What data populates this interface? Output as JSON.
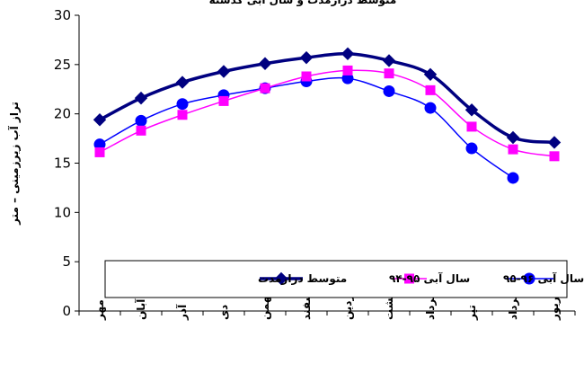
{
  "chart_data": {
    "type": "line",
    "title": "متوسط درازمدت و سال آبی گذشته",
    "ylabel": "تراز آب زیرزمینی – متر",
    "xlabel": "",
    "ylim": [
      0,
      30
    ],
    "yticks": [
      0,
      5,
      10,
      15,
      20,
      25,
      30
    ],
    "grid": false,
    "legend_position": "bottom",
    "categories": [
      "مهر",
      "آبان",
      "آذر",
      "دی",
      "بهمن",
      "اسفند",
      "فروردین",
      "اردیبهشت",
      "خرداد",
      "تیر",
      "مرداد",
      "شهریور"
    ],
    "series": [
      {
        "name": "متوسط درازمدت",
        "color": "#000080",
        "marker": "diamond",
        "values": [
          19.4,
          21.6,
          23.2,
          24.3,
          25.1,
          25.7,
          26.1,
          25.4,
          24.0,
          20.4,
          17.6,
          17.1
        ]
      },
      {
        "name": "سال آبی ۹۵-۹۴",
        "color": "#FF00FF",
        "marker": "square",
        "values": [
          16.1,
          18.3,
          19.9,
          21.3,
          22.6,
          23.8,
          24.4,
          24.1,
          22.4,
          18.7,
          16.4,
          15.7
        ]
      },
      {
        "name": "سال آبی ۹۶-۹۵",
        "color": "#0000FF",
        "marker": "circle",
        "values": [
          16.9,
          19.3,
          21.0,
          21.9,
          22.6,
          23.3,
          23.6,
          22.3,
          20.6,
          16.5,
          13.5,
          null
        ]
      }
    ]
  }
}
